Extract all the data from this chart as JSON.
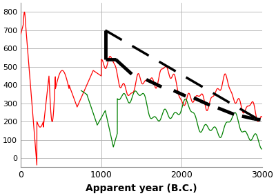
{
  "title": "",
  "xlabel": "Apparent year (B.C.)",
  "ylabel": "",
  "xlim": [
    0,
    3000
  ],
  "ylim": [
    -50,
    850
  ],
  "yticks": [
    0,
    100,
    200,
    300,
    400,
    500,
    600,
    700,
    800
  ],
  "xticks": [
    0,
    1000,
    2000,
    3000
  ],
  "background_color": "#ffffff",
  "grid_color": "#b0b0b0",
  "red_color": "#ff0000",
  "green_color": "#008000",
  "black_color": "#000000"
}
